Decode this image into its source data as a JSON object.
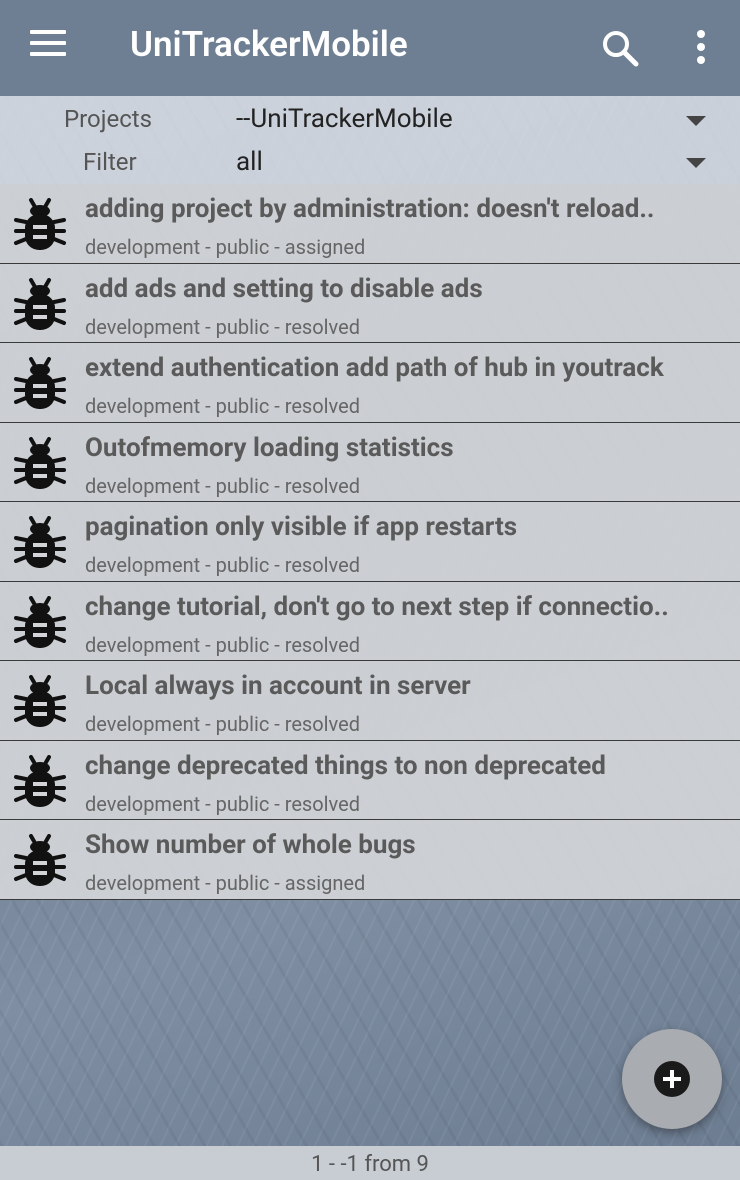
{
  "appbar": {
    "title": "UniTrackerMobile",
    "menu_icon": "menu-icon",
    "search_icon": "search-icon",
    "more_icon": "more-vert-icon"
  },
  "filters": {
    "projects_label": "Projects",
    "projects_value": "--UniTrackerMobile",
    "filter_label": "Filter",
    "filter_value": "all"
  },
  "issues": [
    {
      "title": "adding project by administration: doesn't reload..",
      "meta": "development - public - assigned"
    },
    {
      "title": "add ads and setting to disable ads",
      "meta": "development - public - resolved"
    },
    {
      "title": "extend authentication add path of hub in youtrack",
      "meta": "development - public - resolved"
    },
    {
      "title": "Outofmemory loading statistics",
      "meta": "development - public - resolved"
    },
    {
      "title": "pagination only visible if app restarts",
      "meta": "development - public - resolved"
    },
    {
      "title": "change tutorial, don't go to next step if connectio..",
      "meta": "development - public - resolved"
    },
    {
      "title": "Local always in account in server",
      "meta": "development - public - resolved"
    },
    {
      "title": "change deprecated things to non deprecated",
      "meta": "development - public - resolved"
    },
    {
      "title": "Show number of whole bugs",
      "meta": "development - public - assigned"
    }
  ],
  "fab": {
    "icon": "add-circle-icon"
  },
  "footer": {
    "pagination": "1 - -1 from 9"
  },
  "colors": {
    "appbar": "#6e7f93",
    "list_bg": "#d2d4d7",
    "text": "#5a5a5a"
  }
}
